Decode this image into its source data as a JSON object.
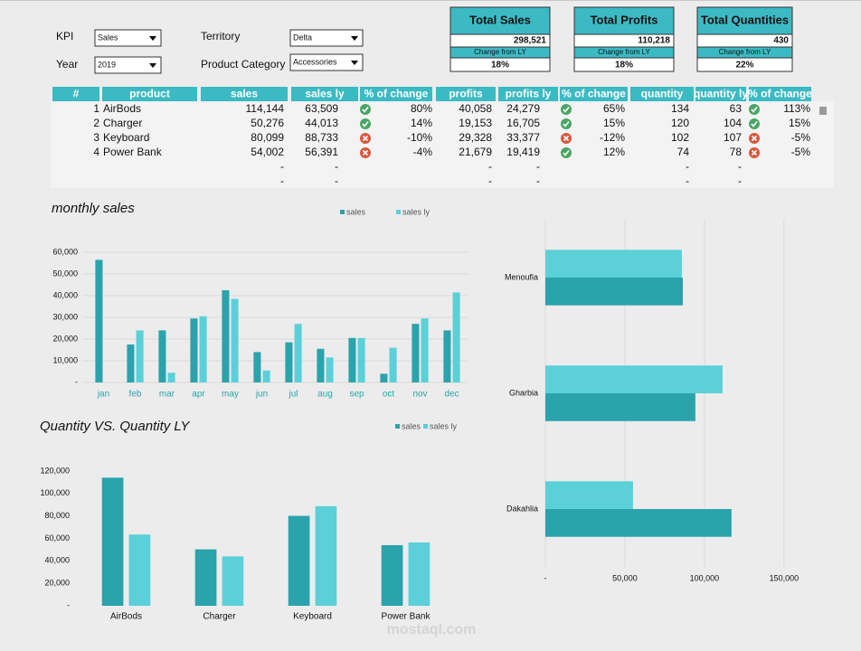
{
  "filters": [
    {
      "label": "KPI",
      "value": "Sales"
    },
    {
      "label": "Year",
      "value": "2019"
    },
    {
      "label": "Territory",
      "value": "Delta"
    },
    {
      "label": "Product Category",
      "value": "Accessories"
    }
  ],
  "cards": [
    {
      "title": "Total Sales",
      "value": "298,521",
      "change_label": "Change from LY",
      "change": "18%"
    },
    {
      "title": "Total Profits",
      "value": "110,218",
      "change_label": "Change from LY",
      "change": "18%"
    },
    {
      "title": "Total Quantities",
      "value": "430",
      "change_label": "Change from LY",
      "change": "22%"
    }
  ],
  "table": {
    "header": [
      "#",
      "product",
      "sales",
      "sales ly",
      "% of change",
      "profits",
      "profits ly",
      "% of change",
      "quantity",
      "quantity ly",
      "% of change"
    ],
    "rows": [
      [
        "1",
        "AirBods",
        "114,144",
        "63,509",
        "80%",
        "40,058",
        "24,279",
        "65%",
        "134",
        "63",
        "113%"
      ],
      [
        "2",
        "Charger",
        "50,276",
        "44,013",
        "14%",
        "19,153",
        "16,705",
        "15%",
        "120",
        "104",
        "15%"
      ],
      [
        "3",
        "Keyboard",
        "80,099",
        "88,733",
        "-10%",
        "29,328",
        "33,377",
        "-12%",
        "102",
        "107",
        "-5%"
      ],
      [
        "4",
        "Power Bank",
        "54,002",
        "56,391",
        "-4%",
        "21,679",
        "19,419",
        "12%",
        "74",
        "78",
        "-5%"
      ],
      [
        null,
        null,
        "-",
        "-",
        null,
        "-",
        "-",
        null,
        "-",
        "-",
        null
      ],
      [
        null,
        null,
        "-",
        "-",
        null,
        "-",
        "-",
        null,
        "-",
        "-",
        null
      ]
    ]
  },
  "chart_data": [
    {
      "type": "bar",
      "title": "monthly sales",
      "categories": [
        "jan",
        "feb",
        "mar",
        "apr",
        "may",
        "jun",
        "jul",
        "aug",
        "sep",
        "oct",
        "nov",
        "dec"
      ],
      "series": [
        {
          "name": "sales",
          "color": "#2aa3ac",
          "values": [
            56500,
            17500,
            24000,
            29500,
            42500,
            14000,
            18500,
            15500,
            20500,
            4000,
            27000,
            24000
          ]
        },
        {
          "name": "sales ly",
          "color": "#5bd0d8",
          "values": [
            0,
            24000,
            4500,
            30500,
            38500,
            5500,
            27000,
            11500,
            20500,
            16000,
            29500,
            41500
          ]
        }
      ],
      "ylim": [
        0,
        60000
      ],
      "yticks": [
        {
          "value": 0,
          "label": "-"
        },
        {
          "value": 10000,
          "label": "10,000"
        },
        {
          "value": 20000,
          "label": "20,000"
        },
        {
          "value": 30000,
          "label": "30,000"
        },
        {
          "value": 40000,
          "label": "40,000"
        },
        {
          "value": 50000,
          "label": "50,000"
        },
        {
          "value": 60000,
          "label": "60,000"
        }
      ],
      "grid": true
    },
    {
      "type": "bar",
      "title": "Quantity VS. Quantity LY",
      "categories": [
        "AirBods",
        "Charger",
        "Keyboard",
        "Power Bank"
      ],
      "series": [
        {
          "name": "sales",
          "color": "#2aa3ac",
          "values": [
            114144,
            50276,
            80099,
            54002
          ]
        },
        {
          "name": "sales ly",
          "color": "#5bd0d8",
          "values": [
            63509,
            44013,
            88733,
            56391
          ]
        }
      ],
      "ylim": [
        0,
        120000
      ],
      "yticks": [
        {
          "value": 0,
          "label": "-"
        },
        {
          "value": 20000,
          "label": "20,000"
        },
        {
          "value": 40000,
          "label": "40,000"
        },
        {
          "value": 60000,
          "label": "60,000"
        },
        {
          "value": 80000,
          "label": "80,000"
        },
        {
          "value": 100000,
          "label": "100,000"
        },
        {
          "value": 120000,
          "label": "120,000"
        }
      ],
      "grid": false
    },
    {
      "type": "barh",
      "categories": [
        "Menoufia",
        "Gharbia",
        "Dakahlia"
      ],
      "series": [
        {
          "color": "#2aa3ac",
          "values": [
            86400,
            94300,
            117000
          ]
        },
        {
          "color": "#5bd0d8",
          "values": [
            85800,
            111400,
            55100
          ]
        }
      ],
      "xlim": [
        0,
        166000
      ],
      "xticks": [
        {
          "value": 0,
          "label": "-"
        },
        {
          "value": 50000,
          "label": "50,000"
        },
        {
          "value": 100000,
          "label": "100,000"
        },
        {
          "value": 150000,
          "label": "150,000"
        }
      ],
      "grid": true
    }
  ],
  "watermark": "mostaql.com"
}
